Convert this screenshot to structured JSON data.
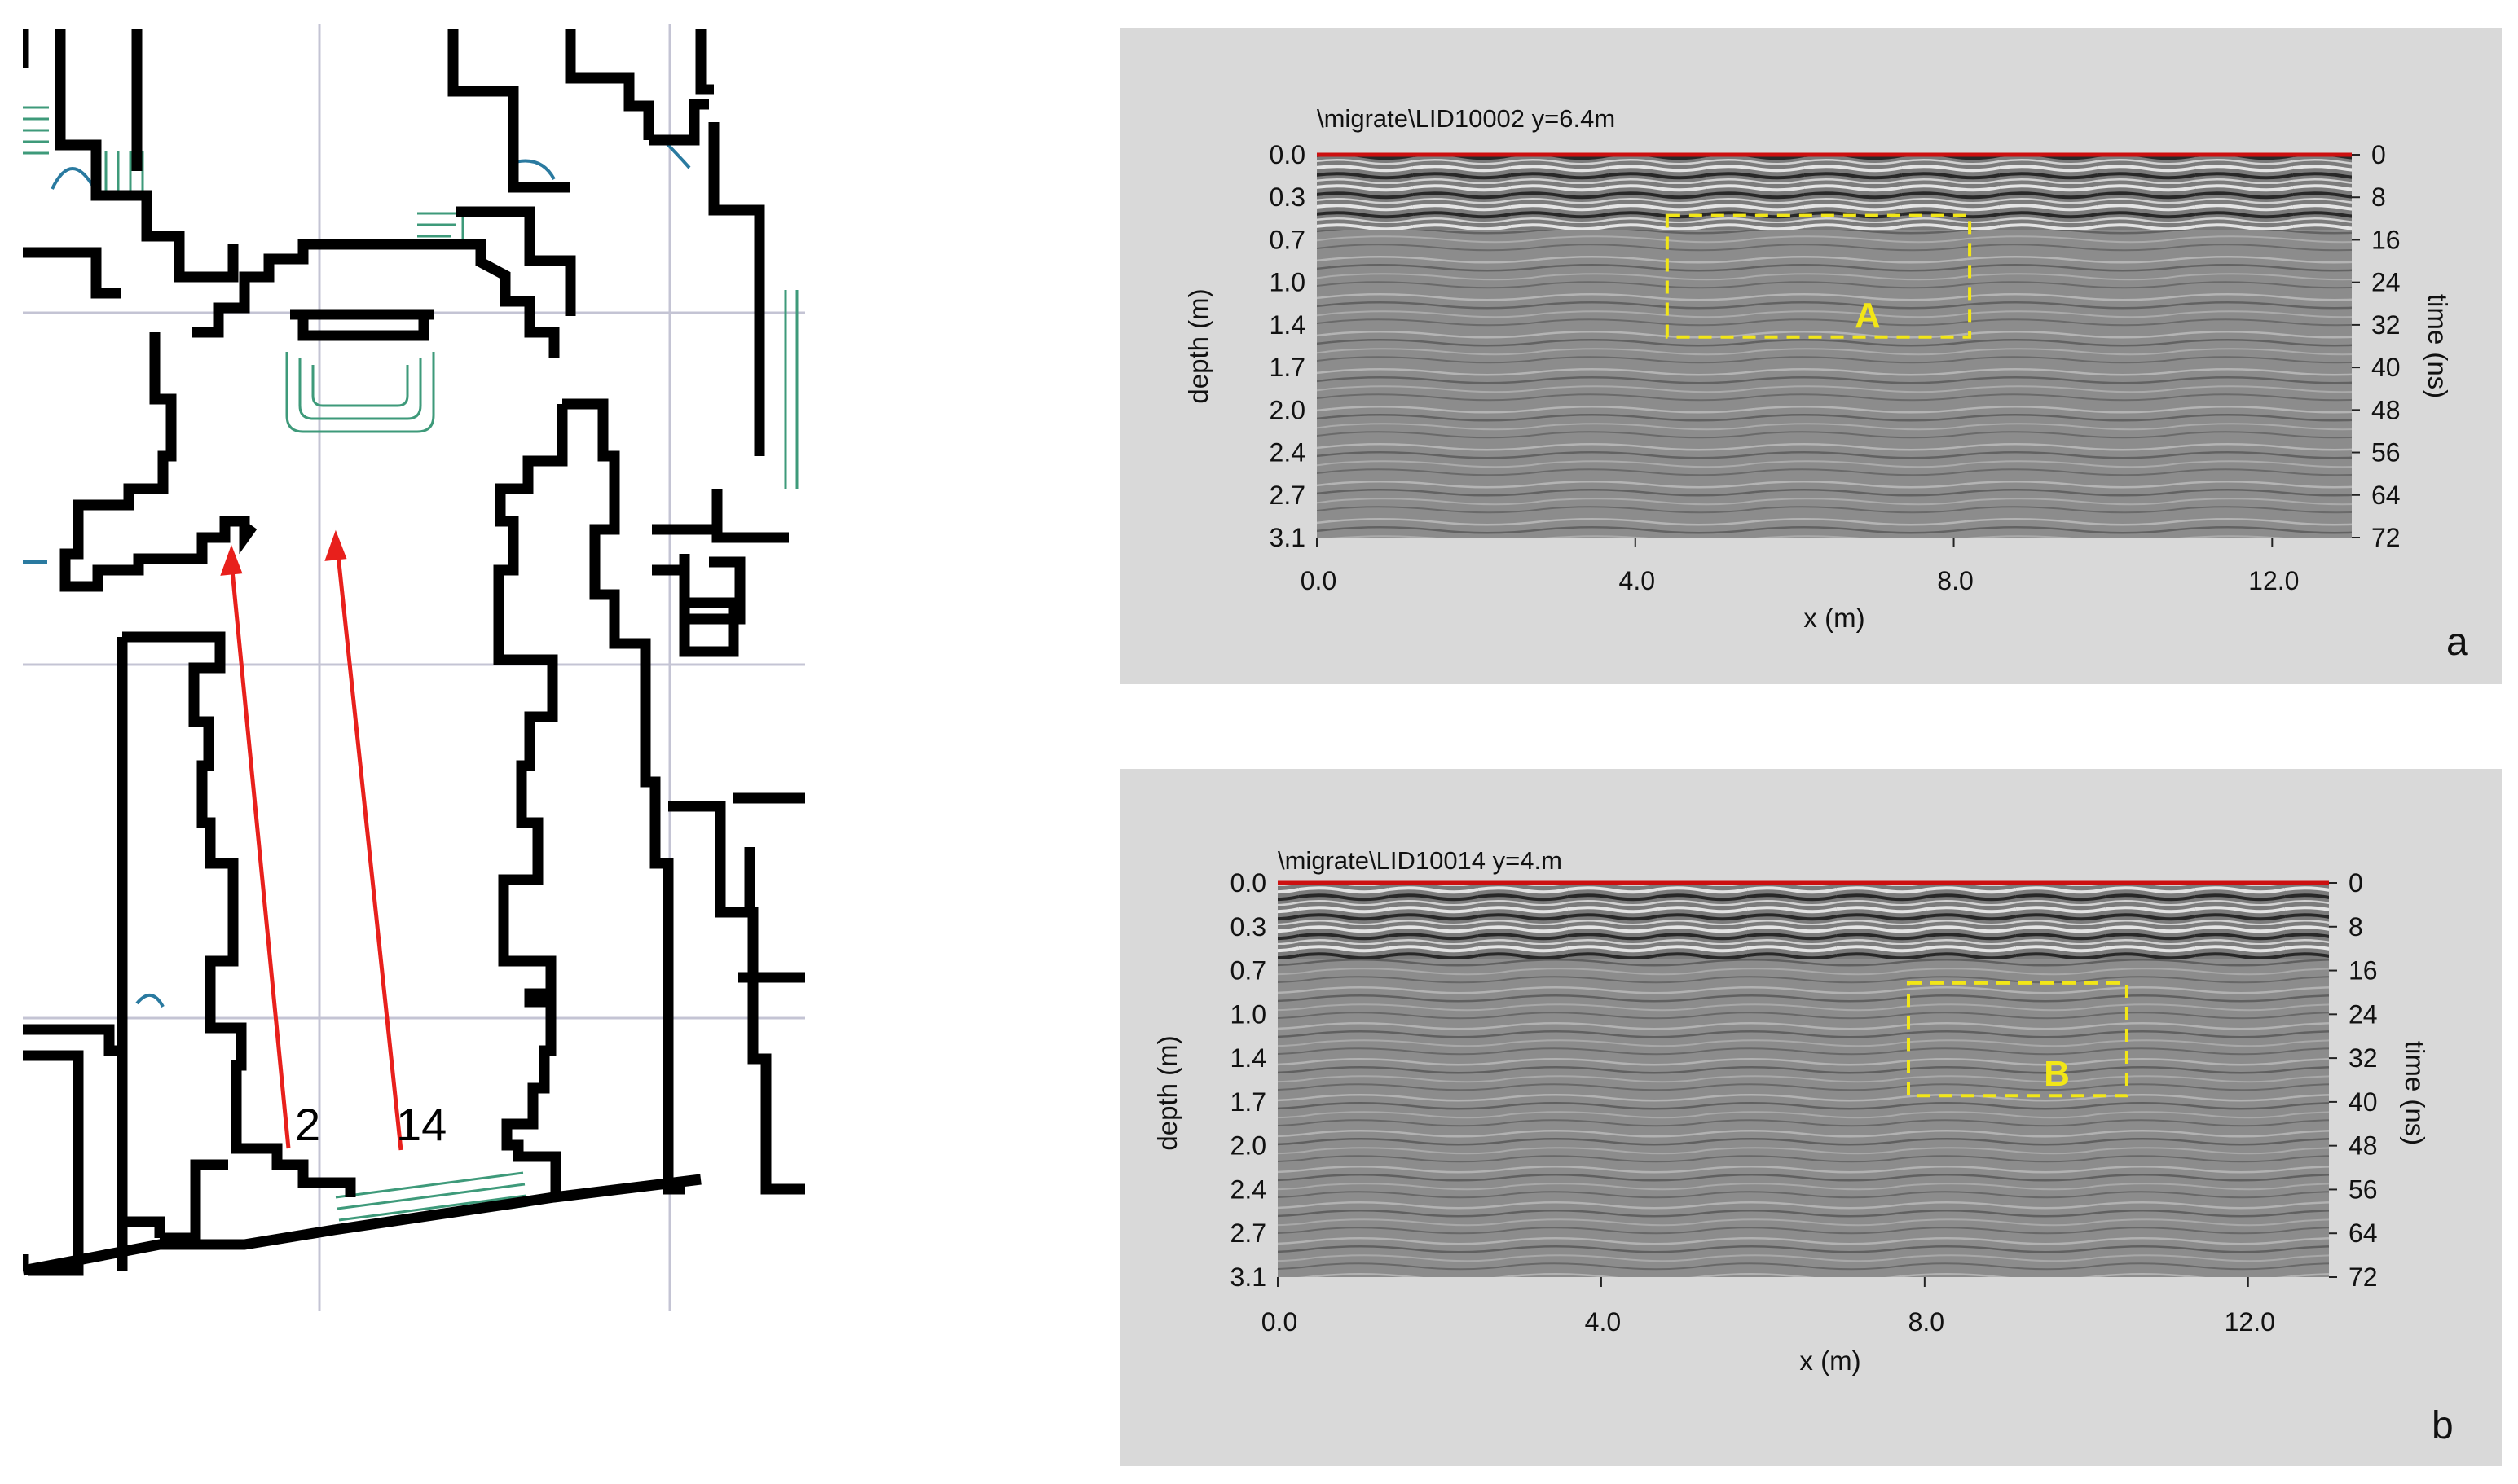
{
  "floor_plan": {
    "profile_markers": [
      {
        "label": "2"
      },
      {
        "label": "14"
      }
    ],
    "colors": {
      "walls": "#000000",
      "profiles": "#e8201c",
      "stairs": "#3e9a7a",
      "grid": "#c4c4d4"
    }
  },
  "sections": [
    {
      "id": "a",
      "panel_letter": "a",
      "title": "\\migrate\\LID10002   y=6.4m",
      "depth_ticks": [
        "0.0",
        "0.3",
        "0.7",
        "1.0",
        "1.4",
        "1.7",
        "2.0",
        "2.4",
        "2.7",
        "3.1"
      ],
      "time_ticks": [
        "0",
        "8",
        "16",
        "24",
        "32",
        "40",
        "48",
        "56",
        "64",
        "72"
      ],
      "x_ticks": [
        "0.0",
        "4.0",
        "8.0",
        "12.0"
      ],
      "xlabel": "x (m)",
      "ylabel_left": "depth (m)",
      "ylabel_right": "time (ns)",
      "anomaly": {
        "label": "A",
        "x_range_m": [
          4.4,
          8.2
        ],
        "depth_range_m": [
          0.5,
          1.5
        ]
      }
    },
    {
      "id": "b",
      "panel_letter": "b",
      "title": "\\migrate\\LID10014   y=4.m",
      "depth_ticks": [
        "0.0",
        "0.3",
        "0.7",
        "1.0",
        "1.4",
        "1.7",
        "2.0",
        "2.4",
        "2.7",
        "3.1"
      ],
      "time_ticks": [
        "0",
        "8",
        "16",
        "24",
        "32",
        "40",
        "48",
        "56",
        "64",
        "72"
      ],
      "x_ticks": [
        "0.0",
        "4.0",
        "8.0",
        "12.0"
      ],
      "xlabel": "x (m)",
      "ylabel_left": "depth (m)",
      "ylabel_right": "time (ns)",
      "anomaly": {
        "label": "B",
        "x_range_m": [
          7.8,
          10.5
        ],
        "depth_range_m": [
          0.8,
          1.7
        ]
      }
    }
  ],
  "style": {
    "radargram_bg": "#8a8a8a",
    "surface_line": "#cc1010",
    "anomaly_box": "#f2e617"
  }
}
